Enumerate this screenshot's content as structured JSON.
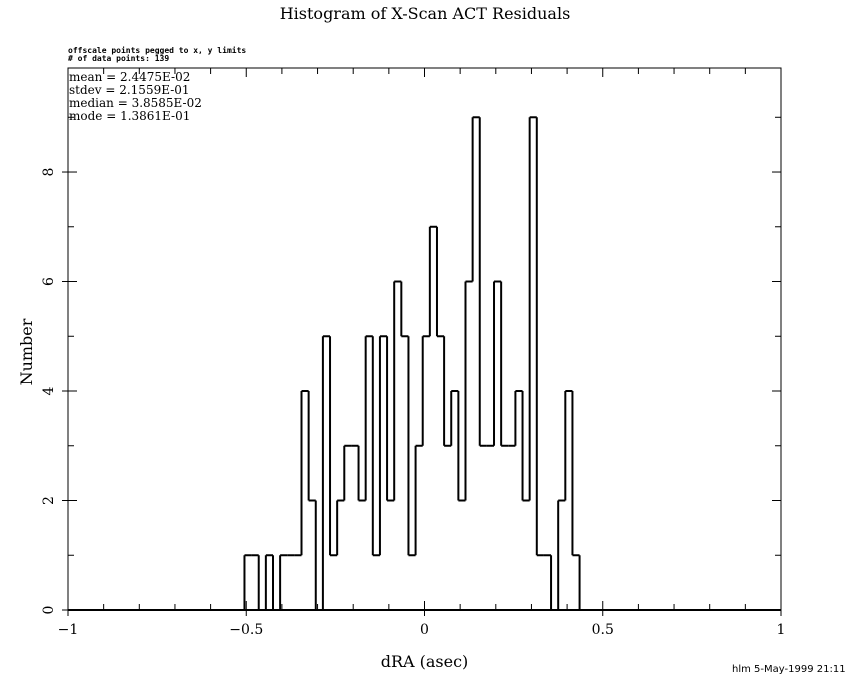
{
  "chart_data": {
    "type": "bar",
    "style": "step-histogram",
    "title": "Histogram of X-Scan ACT Residuals",
    "notes": [
      "offscale points pegged to x, y limits",
      "# of data points: 139"
    ],
    "stats": [
      "mean =  2.4475E-02",
      "stdev =  2.1559E-01",
      "median =  3.8585E-02",
      "mode =  1.3861E-01"
    ],
    "xlabel": "dRA (asec)",
    "ylabel": "Number",
    "xlim": [
      -1,
      1
    ],
    "ylim": [
      0,
      9.9
    ],
    "xticks": [
      -1,
      -0.5,
      0,
      0.5,
      1
    ],
    "xtick_labels": [
      "−1",
      "−0.5",
      "0",
      "0.5",
      "1"
    ],
    "yticks": [
      0,
      2,
      4,
      6,
      8
    ],
    "ytick_labels": [
      "0",
      "2",
      "4",
      "6",
      "8"
    ],
    "bin_start": -0.505,
    "bin_width": 0.02,
    "counts": [
      1,
      1,
      0,
      1,
      0,
      1,
      1,
      1,
      4,
      2,
      0,
      5,
      1,
      2,
      3,
      3,
      2,
      5,
      1,
      5,
      2,
      6,
      5,
      1,
      3,
      5,
      7,
      5,
      3,
      4,
      2,
      6,
      9,
      3,
      3,
      6,
      3,
      3,
      4,
      2,
      9,
      1,
      1,
      0,
      2,
      4,
      1
    ],
    "grid": false,
    "line_color": "#000000"
  },
  "footer": "hlm   5-May-1999 21:11"
}
